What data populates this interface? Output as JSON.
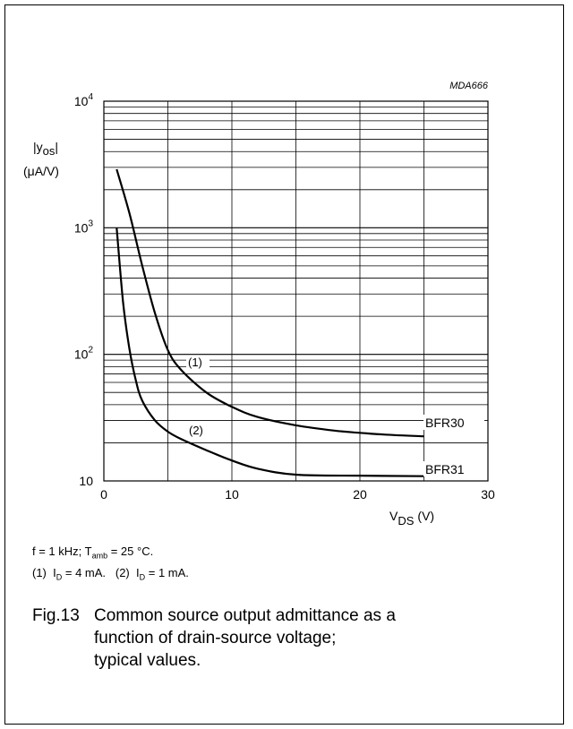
{
  "chart_data": {
    "type": "line",
    "code": "MDA666",
    "ylabel_main": "|y",
    "ylabel_sub": "os",
    "ylabel_close": "|",
    "yunit": "(μA/V)",
    "xlabel_main": "V",
    "xlabel_sub": "DS",
    "xunit": "(V)",
    "xlim": [
      0,
      30
    ],
    "ylim": [
      10,
      10000
    ],
    "yscale": "log",
    "grid": true,
    "x_ticks": [
      {
        "value": 0,
        "label": "0"
      },
      {
        "value": 10,
        "label": "10"
      },
      {
        "value": 20,
        "label": "20"
      },
      {
        "value": 30,
        "label": "30"
      }
    ],
    "y_ticks": [
      {
        "value": 10,
        "base": "10",
        "exp": ""
      },
      {
        "value": 100,
        "base": "10",
        "exp": "2"
      },
      {
        "value": 1000,
        "base": "10",
        "exp": "3"
      },
      {
        "value": 10000,
        "base": "10",
        "exp": "4"
      }
    ],
    "series": [
      {
        "name": "BFR30",
        "label": "(1)",
        "x": [
          1.0,
          2.0,
          3.0,
          4.0,
          5.0,
          6.0,
          8.0,
          10.0,
          12.0,
          15.0,
          18.0,
          20.0,
          22.0,
          25.0
        ],
        "y": [
          2900,
          1300,
          500,
          210,
          108,
          76,
          50,
          38.5,
          32,
          27.5,
          25,
          24,
          23.2,
          22.5
        ]
      },
      {
        "name": "BFR31",
        "label": "(2)",
        "x": [
          1.0,
          1.5,
          2.0,
          2.5,
          3.0,
          4.0,
          5.0,
          6.0,
          8.0,
          10.0,
          12.0,
          15.0,
          20.0,
          25.0
        ],
        "y": [
          1000,
          260,
          110,
          62,
          43,
          30,
          24.5,
          21.5,
          17.5,
          14.5,
          12.5,
          11.2,
          11.0,
          10.9
        ]
      }
    ]
  },
  "notes": {
    "line1": {
      "a": "f = 1 kHz; T",
      "sub": "amb",
      "b": " = 25 °C."
    },
    "line2": {
      "l1": "(1)",
      "i1": "I",
      "s1": "D",
      "v1": " = 4 mA.",
      "l2": "(2)",
      "i2": "I",
      "s2": "D",
      "v2": " = 1 mA."
    }
  },
  "caption": {
    "number": "Fig.13",
    "line1": "Common source output admittance as a",
    "line2": "function of drain-source voltage;",
    "line3": "typical values."
  }
}
